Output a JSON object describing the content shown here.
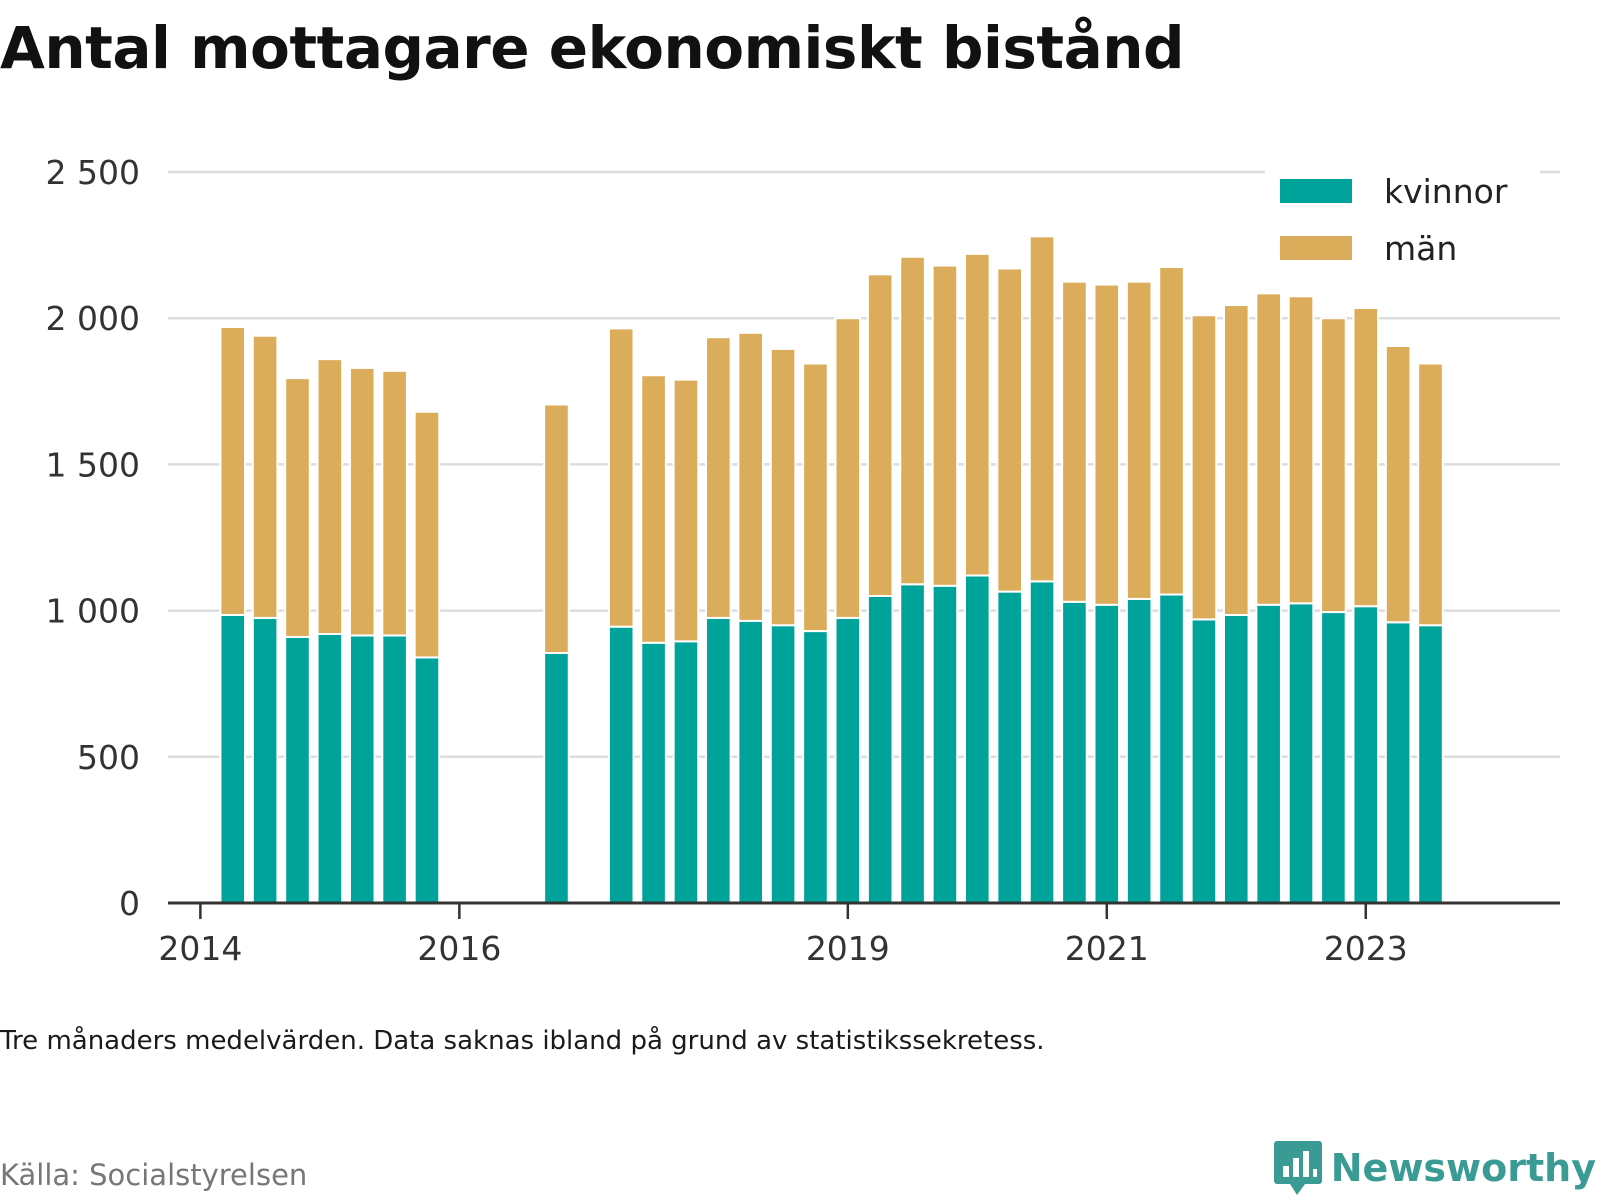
{
  "title": "Antal mottagare ekonomiskt bistånd",
  "note": "Tre månaders medelvärden. Data saknas ibland på grund av statistikssekretess.",
  "source": "Källa: Socialstyrelsen",
  "brand": {
    "name": "Newsworthy",
    "icon": "newsworthy-logo-icon"
  },
  "colors": {
    "kvinnor": "#00a39a",
    "man": "#dbac59",
    "grid": "#dddddd",
    "axis": "#333333",
    "brand": "#3a9b94"
  },
  "chart_data": {
    "type": "bar",
    "stacked": true,
    "title": "Antal mottagare ekonomiskt bistånd",
    "xlabel": "",
    "ylabel": "",
    "ylim": [
      0,
      2500
    ],
    "yticks": [
      0,
      500,
      1000,
      1500,
      2000,
      2500
    ],
    "ytick_labels": [
      "0",
      "500",
      "1 000",
      "1 500",
      "2 000",
      "2 500"
    ],
    "xticks": [
      2014,
      2016,
      2019,
      2021,
      2023
    ],
    "xtick_labels": [
      "2014",
      "2016",
      "2019",
      "2021",
      "2023"
    ],
    "xlim": [
      2013.75,
      2024.5
    ],
    "grid": true,
    "legend": "top-right",
    "x": [
      2014.25,
      2014.5,
      2014.75,
      2015.0,
      2015.25,
      2015.5,
      2015.75,
      2016.75,
      2017.25,
      2017.5,
      2017.75,
      2018.0,
      2018.25,
      2018.5,
      2018.75,
      2019.0,
      2019.25,
      2019.5,
      2019.75,
      2020.0,
      2020.25,
      2020.5,
      2020.75,
      2021.0,
      2021.25,
      2021.5,
      2021.75,
      2022.0,
      2022.25,
      2022.5,
      2022.75,
      2023.0,
      2023.25,
      2023.5
    ],
    "series": [
      {
        "name": "kvinnor",
        "values": [
          985,
          975,
          910,
          920,
          915,
          915,
          840,
          855,
          945,
          890,
          895,
          975,
          965,
          950,
          930,
          975,
          1050,
          1090,
          1085,
          1120,
          1065,
          1100,
          1030,
          1020,
          1040,
          1055,
          970,
          985,
          1020,
          1025,
          995,
          1015,
          960,
          950
        ]
      },
      {
        "name": "män",
        "values": [
          985,
          965,
          885,
          940,
          915,
          905,
          840,
          850,
          1020,
          915,
          895,
          960,
          985,
          945,
          915,
          1025,
          1100,
          1120,
          1095,
          1100,
          1105,
          1180,
          1095,
          1095,
          1085,
          1120,
          1040,
          1060,
          1065,
          1050,
          1005,
          1020,
          945,
          895
        ]
      }
    ]
  }
}
